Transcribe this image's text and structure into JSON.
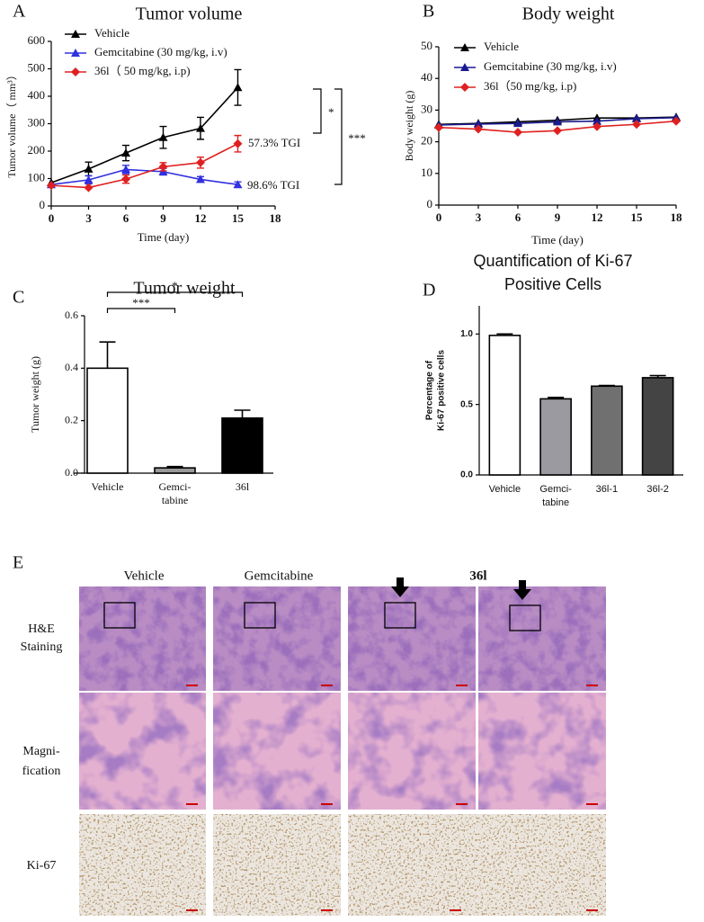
{
  "chart_data": [
    {
      "type": "line",
      "panel": "A",
      "title": "Tumor volume",
      "x_label": "Time (day)",
      "y_label": "Tumor volume（ mm³）",
      "x": [
        0,
        3,
        6,
        9,
        12,
        15
      ],
      "xlim": [
        0,
        18
      ],
      "xticks": [
        0,
        3,
        6,
        9,
        12,
        15,
        18
      ],
      "ylim": [
        0,
        600
      ],
      "yticks": [
        0,
        100,
        200,
        300,
        400,
        500,
        600
      ],
      "series": [
        {
          "name": "Vehicle",
          "color": "#000000",
          "marker": "triangle",
          "values": [
            85,
            135,
            193,
            250,
            283,
            432
          ],
          "errors": [
            0,
            25,
            28,
            40,
            40,
            65
          ]
        },
        {
          "name": "Gemcitabine (30 mg/kg, i.v)",
          "color": "#3030e0",
          "marker": "triangle",
          "values": [
            78,
            95,
            133,
            125,
            97,
            78
          ],
          "errors": [
            0,
            15,
            15,
            12,
            10,
            10
          ]
        },
        {
          "name": "36l（ 50 mg/kg, i.p)",
          "color": "#e02020",
          "marker": "diamond",
          "values": [
            75,
            67,
            98,
            143,
            158,
            227
          ],
          "errors": [
            0,
            0,
            15,
            15,
            20,
            30
          ]
        }
      ],
      "annotations": [
        "57.3% TGI",
        "98.6% TGI"
      ],
      "significance": [
        "*",
        "***"
      ]
    },
    {
      "type": "line",
      "panel": "B",
      "title": "Body weight",
      "x_label": "Time (day)",
      "y_label": "Body weight (g)",
      "x": [
        0,
        3,
        6,
        9,
        12,
        15,
        18
      ],
      "xlim": [
        0,
        18
      ],
      "xticks": [
        0,
        3,
        6,
        9,
        12,
        15,
        18
      ],
      "ylim": [
        0,
        50
      ],
      "yticks": [
        0,
        10,
        20,
        30,
        40,
        50
      ],
      "series": [
        {
          "name": "Vehicle",
          "color": "#000000",
          "marker": "triangle",
          "values": [
            25.5,
            25.8,
            26.3,
            26.8,
            27.5,
            27.5,
            27.8
          ]
        },
        {
          "name": "Gemcitabine (30 mg/kg, i.v)",
          "color": "#1a1a90",
          "marker": "triangle",
          "values": [
            25.3,
            25.6,
            25.8,
            26.3,
            26.5,
            27.3,
            27.6
          ]
        },
        {
          "name": "36l（50 mg/kg, i.p)",
          "color": "#e02020",
          "marker": "diamond",
          "values": [
            24.5,
            24,
            23,
            23.5,
            24.8,
            25.5,
            26.5
          ]
        }
      ]
    },
    {
      "type": "bar",
      "panel": "C",
      "title": "Tumor weight",
      "y_label": "Tumor weight (g)",
      "categories": [
        "Vehicle",
        [
          "Gemci-",
          "tabine"
        ],
        "36l"
      ],
      "values": [
        0.4,
        0.02,
        0.21
      ],
      "errors": [
        0.1,
        0.005,
        0.03
      ],
      "colors": [
        "#ffffff",
        "#999999",
        "#000000"
      ],
      "ylim": [
        0,
        0.6
      ],
      "yticks": [
        {
          "value": 0,
          "label": "0.0"
        },
        0.2,
        0.4,
        0.6
      ],
      "significance": [
        "***",
        "*"
      ]
    },
    {
      "type": "bar",
      "panel": "D",
      "title": [
        "Quantification of  Ki-67",
        "Positive Cells"
      ],
      "y_label": [
        "Percentage of",
        "Ki-67 positive cells"
      ],
      "categories": [
        "Vehicle",
        [
          "Gemci-",
          "tabine"
        ],
        "36l-1",
        "36l-2"
      ],
      "values": [
        0.99,
        0.54,
        0.63,
        0.69
      ],
      "errors": [
        0.01,
        0.01,
        0.005,
        0.015
      ],
      "colors": [
        "#ffffff",
        "#9a9aa0",
        "#707070",
        "#444444"
      ],
      "ylim": [
        0,
        1.2
      ],
      "yticks": [
        {
          "value": 0,
          "label": "0.0"
        },
        0.5,
        {
          "value": 1,
          "label": "1.0"
        }
      ]
    }
  ],
  "panel_e": {
    "panel": "E",
    "columns": [
      "Vehicle",
      "Gemcitabine",
      "36l"
    ],
    "rows": [
      [
        "H&E",
        "Staining"
      ],
      [
        "Magni-",
        "fication"
      ],
      [
        "Ki-67"
      ]
    ]
  }
}
